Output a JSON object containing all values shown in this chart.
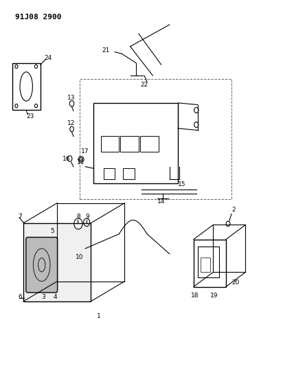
{
  "title": "91J08 2900",
  "bg_color": "#ffffff",
  "line_color": "#000000",
  "fig_width": 4.12,
  "fig_height": 5.33,
  "dpi": 100
}
